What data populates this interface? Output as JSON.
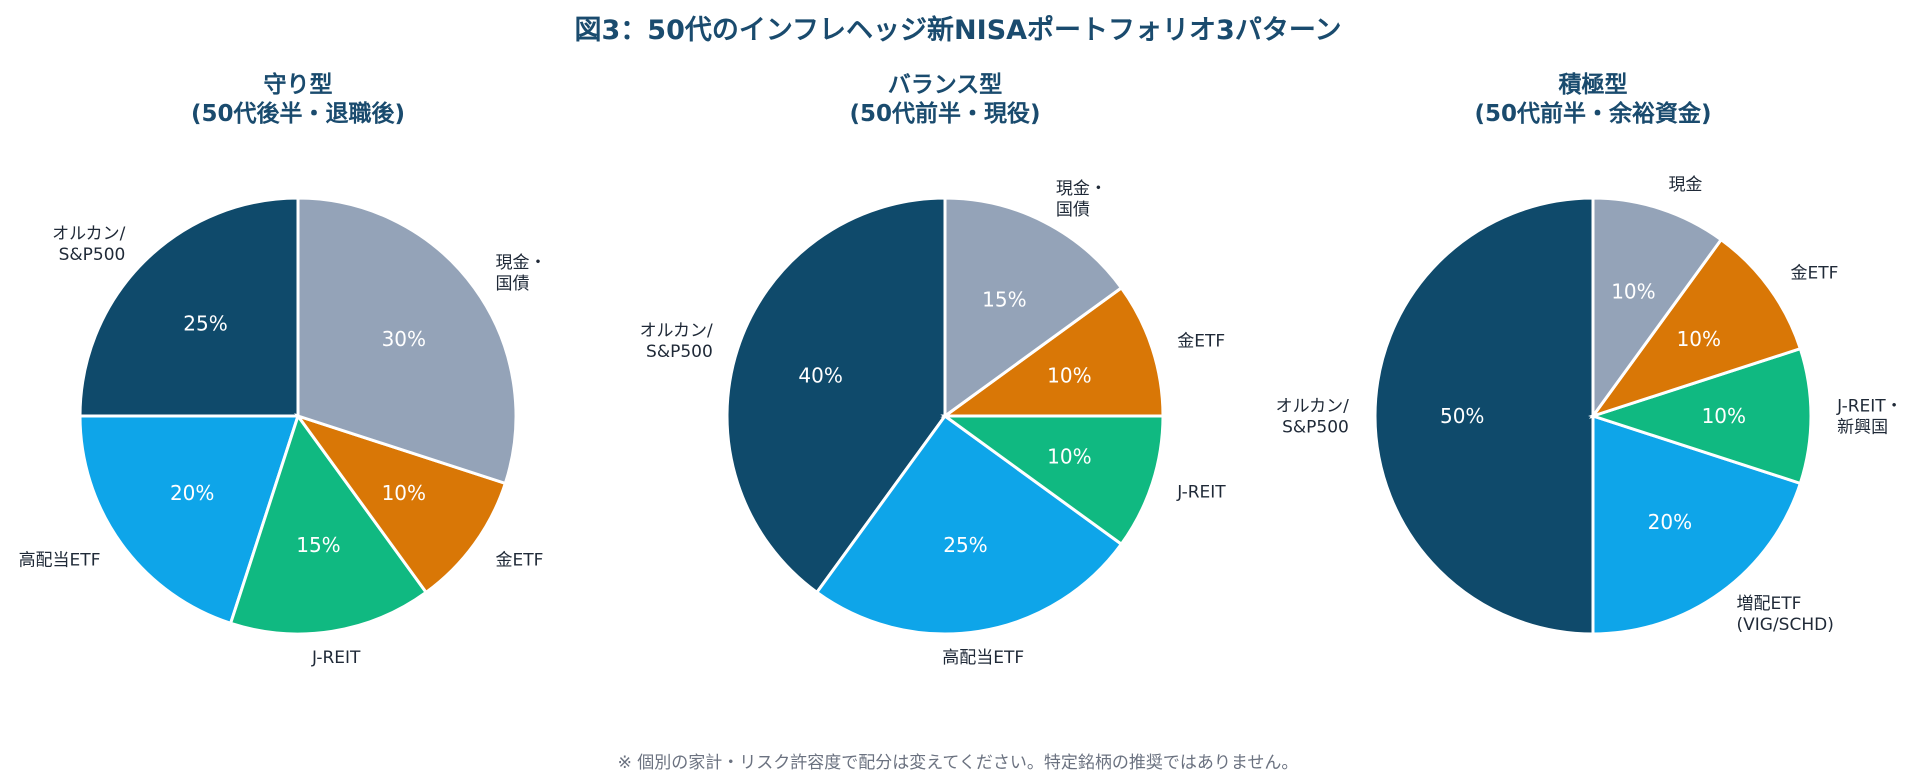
{
  "title": "図3：50代のインフレヘッジ新NISAポートフォリオ3パターン",
  "note": "※ 個別の家計・リスク許容度で配分は変えてください。特定銘柄の推奨ではありません。",
  "colors": {
    "orukan": "#0f4a6b",
    "cash": "#94a3b8",
    "gold": "#d97706",
    "jreit": "#10b981",
    "dividend": "#0ea5e9",
    "title": "#1a4b6e",
    "label": "#1f2937"
  },
  "chart_data": [
    {
      "type": "pie",
      "title": [
        "守り型",
        "(50代後半・退職後)"
      ],
      "start": "top",
      "direction": "counterclockwise",
      "slices": [
        {
          "label": "オルカン/\nS&P500",
          "value": 25,
          "color": "#0f4a6b"
        },
        {
          "label": "高配当ETF",
          "value": 20,
          "color": "#0ea5e9"
        },
        {
          "label": "J-REIT",
          "value": 15,
          "color": "#10b981"
        },
        {
          "label": "金ETF",
          "value": 10,
          "color": "#d97706"
        },
        {
          "label": "現金・\n国債",
          "value": 30,
          "color": "#94a3b8"
        }
      ]
    },
    {
      "type": "pie",
      "title": [
        "バランス型",
        "(50代前半・現役)"
      ],
      "start": "top",
      "direction": "counterclockwise",
      "slices": [
        {
          "label": "オルカン/\nS&P500",
          "value": 40,
          "color": "#0f4a6b"
        },
        {
          "label": "高配当ETF",
          "value": 25,
          "color": "#0ea5e9"
        },
        {
          "label": "J-REIT",
          "value": 10,
          "color": "#10b981"
        },
        {
          "label": "金ETF",
          "value": 10,
          "color": "#d97706"
        },
        {
          "label": "現金・\n国債",
          "value": 15,
          "color": "#94a3b8"
        }
      ]
    },
    {
      "type": "pie",
      "title": [
        "積極型",
        "(50代前半・余裕資金)"
      ],
      "start": "top",
      "direction": "counterclockwise",
      "slices": [
        {
          "label": "オルカン/\nS&P500",
          "value": 50,
          "color": "#0f4a6b"
        },
        {
          "label": "増配ETF\n(VIG/SCHD)",
          "value": 20,
          "color": "#0ea5e9"
        },
        {
          "label": "J-REIT・\n新興国",
          "value": 10,
          "color": "#10b981"
        },
        {
          "label": "金ETF",
          "value": 10,
          "color": "#d97706"
        },
        {
          "label": "現金",
          "value": 10,
          "color": "#94a3b8"
        }
      ]
    }
  ]
}
